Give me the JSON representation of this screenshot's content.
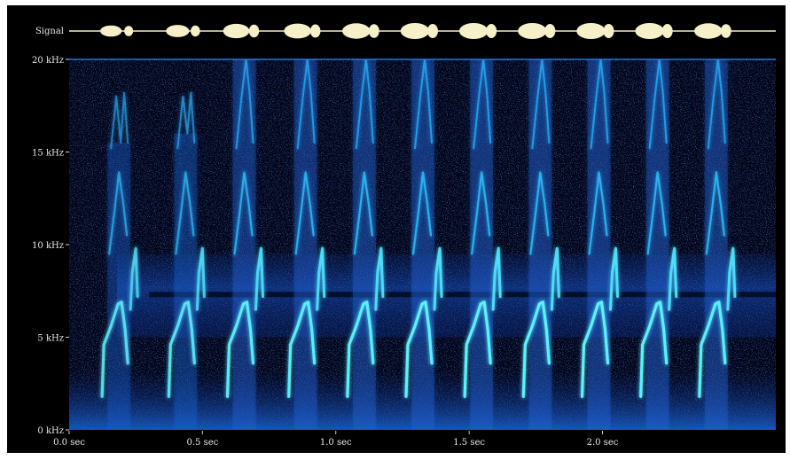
{
  "chart_data": {
    "type": "heatmap",
    "subtype": "spectrogram",
    "signal_label": "Signal",
    "y_tick_labels": [
      "20 kHz",
      "15 kHz",
      "10 kHz",
      "5 kHz",
      "0 kHz"
    ],
    "y_tick_values": [
      20,
      15,
      10,
      5,
      0
    ],
    "x_tick_labels": [
      "0.0 sec",
      "0.5 sec",
      "1.0 sec",
      "1.5 sec",
      "2.0 sec"
    ],
    "x_tick_values": [
      0.0,
      0.5,
      1.0,
      1.5,
      2.0
    ],
    "xlim": [
      0.0,
      2.65
    ],
    "ylim": [
      0,
      20
    ],
    "x_unit": "sec",
    "y_unit": "kHz",
    "colormap": [
      "#02031a",
      "#08227a",
      "#1a6cd6",
      "#22c3f0",
      "#b8fbf0"
    ],
    "syllables": [
      {
        "t": 0.19,
        "peak_khz": 15.5,
        "strength": 0.55
      },
      {
        "t": 0.44,
        "peak_khz": 16.0,
        "strength": 0.65
      },
      {
        "t": 0.66,
        "peak_khz": 20.0,
        "strength": 0.85
      },
      {
        "t": 0.89,
        "peak_khz": 20.0,
        "strength": 0.9
      },
      {
        "t": 1.11,
        "peak_khz": 20.0,
        "strength": 0.95
      },
      {
        "t": 1.33,
        "peak_khz": 20.0,
        "strength": 1.0
      },
      {
        "t": 1.55,
        "peak_khz": 20.0,
        "strength": 1.0
      },
      {
        "t": 1.77,
        "peak_khz": 20.0,
        "strength": 1.0
      },
      {
        "t": 1.99,
        "peak_khz": 20.0,
        "strength": 1.0
      },
      {
        "t": 2.21,
        "peak_khz": 20.0,
        "strength": 1.0
      },
      {
        "t": 2.43,
        "peak_khz": 20.0,
        "strength": 0.95
      }
    ],
    "background_band_khz": [
      5,
      9.5
    ],
    "dark_stripe_khz": 7.2
  }
}
